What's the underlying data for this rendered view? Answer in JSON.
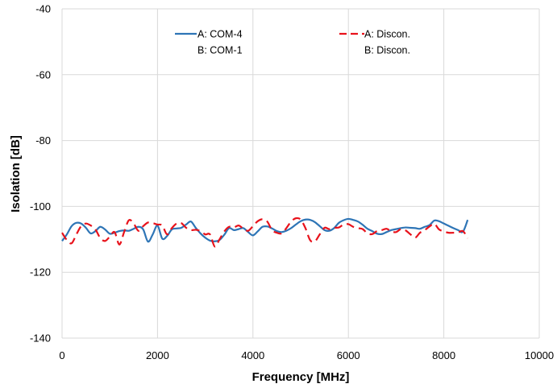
{
  "chart_data": {
    "type": "line",
    "xlabel": "Frequency [MHz]",
    "ylabel": "Isolation [dB]",
    "xlim": [
      0,
      10000
    ],
    "ylim": [
      -140,
      -40
    ],
    "xticks": [
      0,
      2000,
      4000,
      6000,
      8000,
      10000
    ],
    "yticks": [
      -40,
      -60,
      -80,
      -100,
      -120,
      -140
    ],
    "grid": true,
    "legend_position": "top",
    "series": [
      {
        "name": "A: COM-4",
        "legend_line2": "B: COM-1",
        "color": "#2e75b6",
        "style": "solid",
        "x": [
          0,
          100,
          200,
          300,
          400,
          500,
          600,
          700,
          800,
          900,
          1000,
          1100,
          1200,
          1300,
          1400,
          1500,
          1600,
          1700,
          1800,
          1900,
          2000,
          2100,
          2200,
          2300,
          2400,
          2500,
          2600,
          2700,
          2800,
          2900,
          3000,
          3100,
          3200,
          3300,
          3400,
          3500,
          3600,
          3700,
          3800,
          3900,
          4000,
          4100,
          4200,
          4300,
          4400,
          4500,
          4600,
          4700,
          4800,
          4900,
          5000,
          5100,
          5200,
          5300,
          5400,
          5500,
          5600,
          5700,
          5800,
          5900,
          6000,
          6100,
          6200,
          6300,
          6400,
          6500,
          6600,
          6700,
          6800,
          6900,
          7000,
          7100,
          7200,
          7300,
          7400,
          7500,
          7600,
          7700,
          7800,
          7900,
          8000,
          8100,
          8200,
          8300,
          8400,
          8500
        ],
        "y": [
          -110.5,
          -108.5,
          -106,
          -105,
          -105.2,
          -106.5,
          -108.2,
          -107.5,
          -106.2,
          -107,
          -108.3,
          -108,
          -107.5,
          -107.3,
          -107.4,
          -106.8,
          -106.2,
          -107,
          -110.7,
          -108.5,
          -105.8,
          -109.8,
          -109,
          -107,
          -106.7,
          -106.5,
          -105.5,
          -104.6,
          -106.5,
          -108.2,
          -109.5,
          -110.4,
          -110.6,
          -110.2,
          -108.6,
          -106.6,
          -107.2,
          -106.9,
          -106.6,
          -107.8,
          -108.8,
          -107.6,
          -106.2,
          -106.1,
          -106.7,
          -107.5,
          -107.8,
          -107.4,
          -106.6,
          -105.5,
          -104.5,
          -104,
          -104.1,
          -104.8,
          -106,
          -107.2,
          -107.4,
          -106.6,
          -105,
          -104.2,
          -103.8,
          -104.1,
          -104.6,
          -105.6,
          -106.8,
          -107.5,
          -108.3,
          -108.4,
          -107.8,
          -107.2,
          -106.9,
          -106.6,
          -106.4,
          -106.5,
          -106.6,
          -106.8,
          -106.2,
          -105.7,
          -104.3,
          -104.5,
          -105.2,
          -105.9,
          -106.6,
          -107.2,
          -107.7,
          -104.1
        ]
      },
      {
        "name": "A: Discon.",
        "legend_line2": "B: Discon.",
        "color": "#e8121b",
        "style": "dashed",
        "x": [
          0,
          100,
          200,
          300,
          400,
          500,
          600,
          700,
          800,
          900,
          1000,
          1100,
          1200,
          1300,
          1400,
          1500,
          1600,
          1700,
          1800,
          1900,
          2000,
          2100,
          2200,
          2300,
          2400,
          2500,
          2600,
          2700,
          2800,
          2900,
          3000,
          3100,
          3200,
          3300,
          3400,
          3500,
          3600,
          3700,
          3800,
          3900,
          4000,
          4100,
          4200,
          4300,
          4400,
          4500,
          4600,
          4700,
          4800,
          4900,
          5000,
          5100,
          5200,
          5300,
          5400,
          5500,
          5600,
          5700,
          5800,
          5900,
          6000,
          6100,
          6200,
          6300,
          6400,
          6500,
          6600,
          6700,
          6800,
          6900,
          7000,
          7100,
          7200,
          7300,
          7400,
          7500,
          7600,
          7700,
          7800,
          7900,
          8000,
          8100,
          8200,
          8300,
          8400,
          8500
        ],
        "y": [
          -108,
          -110.2,
          -111.2,
          -108.5,
          -106,
          -105.2,
          -105.8,
          -107,
          -109.6,
          -110.5,
          -109.2,
          -107.8,
          -111.6,
          -107.8,
          -104.2,
          -105.2,
          -107.4,
          -106,
          -104.9,
          -105.1,
          -105.5,
          -105.8,
          -108.5,
          -106.6,
          -105.2,
          -105.1,
          -106.5,
          -107.2,
          -107.1,
          -107.5,
          -108.5,
          -108.5,
          -112.2,
          -110,
          -107.6,
          -106.2,
          -106.4,
          -105.8,
          -106.8,
          -107.4,
          -106,
          -104.5,
          -103.9,
          -104.6,
          -107.2,
          -108,
          -108.2,
          -106.6,
          -104.6,
          -103.6,
          -104,
          -106.6,
          -110.3,
          -110.6,
          -108.5,
          -106.5,
          -106.9,
          -106.5,
          -106.4,
          -105.5,
          -105.4,
          -106.2,
          -106.6,
          -106.9,
          -108.2,
          -108.4,
          -107.5,
          -107.2,
          -106.8,
          -107.6,
          -107.8,
          -106.9,
          -107.3,
          -108.5,
          -109.5,
          -108,
          -107.2,
          -106.1,
          -105.3,
          -107,
          -107.6,
          -108,
          -108,
          -107.9,
          -107.5,
          -109.7
        ]
      }
    ]
  }
}
